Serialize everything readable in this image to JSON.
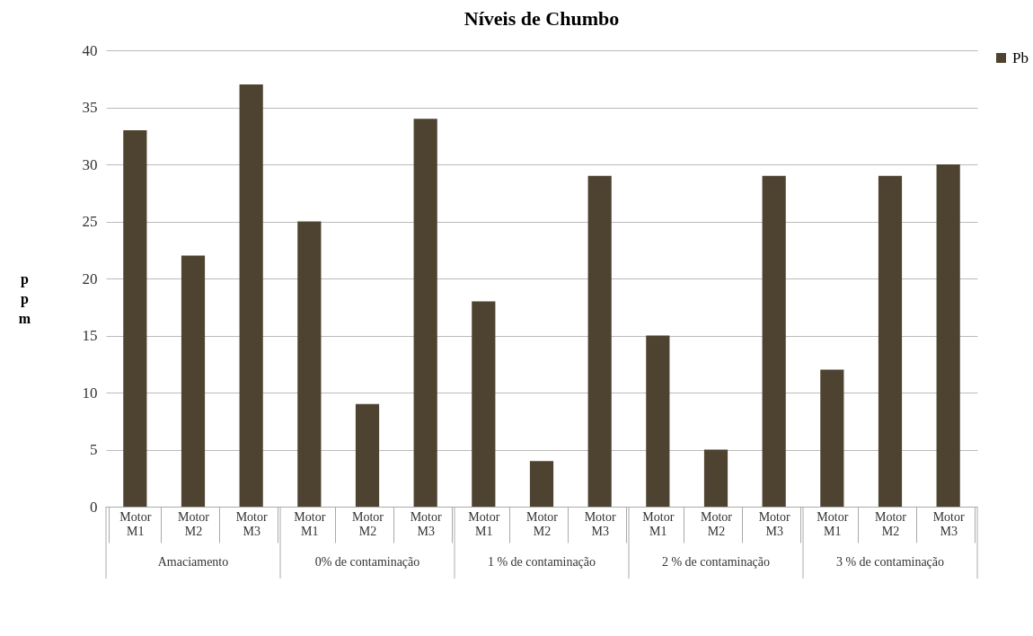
{
  "chart_data": {
    "type": "bar",
    "title": "Níveis de Chumbo",
    "ylabel": "ppm",
    "categories": [
      "Motor M1",
      "Motor M2",
      "Motor M3",
      "Motor M1",
      "Motor M2",
      "Motor M3",
      "Motor M1",
      "Motor M2",
      "Motor M3",
      "Motor M1",
      "Motor M2",
      "Motor M3",
      "Motor M1",
      "Motor M2",
      "Motor M3"
    ],
    "series": [
      {
        "name": "Pb",
        "color": "#4d4330",
        "values": [
          33,
          22,
          37,
          25,
          9,
          34,
          18,
          4,
          29,
          15,
          5,
          29,
          12,
          29,
          30
        ]
      }
    ],
    "annotations": [
      "Amaciamento",
      "0% de contaminação",
      "1 % de contaminação",
      "2 % de contaminação",
      "3 % de contaminação"
    ],
    "ylim": [
      0,
      40
    ],
    "yticks": [
      0,
      5,
      10,
      15,
      20,
      25,
      30,
      35,
      40
    ],
    "grid": "y",
    "legend": "right"
  }
}
